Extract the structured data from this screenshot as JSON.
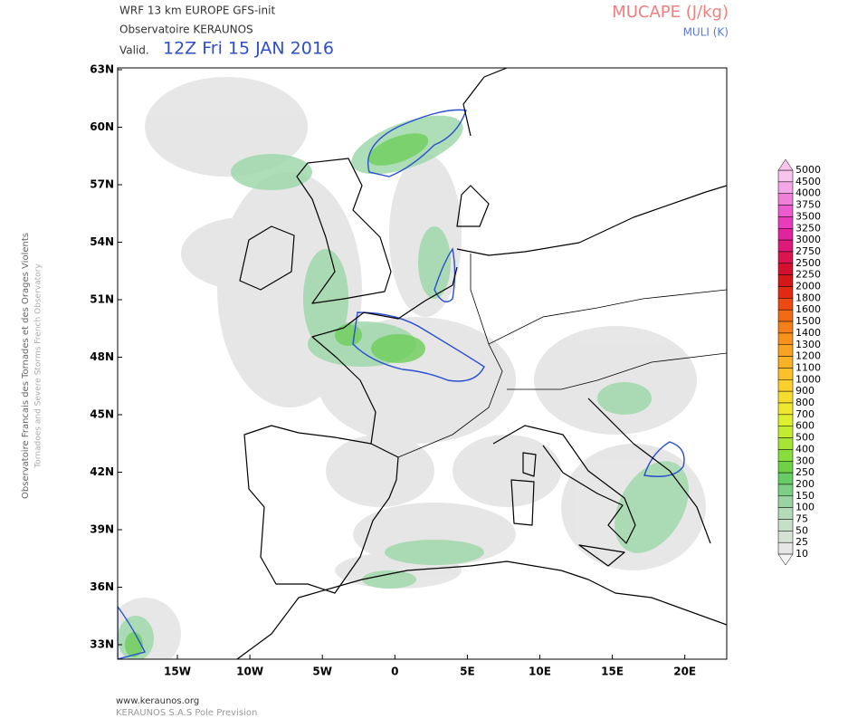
{
  "header": {
    "model": "WRF 13 km EUROPE   GFS-init",
    "org": "Observatoire KERAUNOS",
    "valid_prefix": "Valid.",
    "valid_time": "12Z Fri 15 JAN 2016",
    "field": "MUCAPE (J/kg)",
    "contour_field": "MULI (K)"
  },
  "side_text": [
    "Observatoire Francais des Tornades et des Orages Violents",
    "Tornadoes and Severe Storms French Observatory"
  ],
  "footer": [
    "www.keraunos.org",
    "KERAUNOS S.A.S Pole Prevision"
  ],
  "lat_labels": [
    "63N",
    "60N",
    "57N",
    "54N",
    "51N",
    "48N",
    "45N",
    "42N",
    "39N",
    "36N",
    "33N"
  ],
  "lon_labels": [
    "15W",
    "10W",
    "5W",
    "0",
    "5E",
    "10E",
    "15E",
    "20E"
  ],
  "colorbar": {
    "levels": [
      5000,
      4500,
      4000,
      3750,
      3500,
      3250,
      3000,
      2750,
      2500,
      2250,
      2000,
      1800,
      1600,
      1500,
      1400,
      1300,
      1200,
      1100,
      1000,
      900,
      800,
      700,
      600,
      500,
      400,
      300,
      250,
      200,
      150,
      100,
      75,
      50,
      25,
      10
    ],
    "colors": [
      "#f7c4ee",
      "#f5a6e6",
      "#f07fd9",
      "#ec5ccd",
      "#e83cbd",
      "#e2239e",
      "#dd1a7a",
      "#d9144f",
      "#d4102e",
      "#d41818",
      "#e12a14",
      "#ec4a14",
      "#f26a16",
      "#f5801a",
      "#f7931d",
      "#f8a321",
      "#f9b225",
      "#fac12a",
      "#fbcf2e",
      "#f7dc30",
      "#f0e830",
      "#ddef2e",
      "#c4ec2e",
      "#a6e534",
      "#88dc3c",
      "#6fd246",
      "#66cc66",
      "#7dcf86",
      "#9ad4a2",
      "#b3dbb8",
      "#c6e0c8",
      "#d6e2d6",
      "#e6e6e6",
      "#f4f4f4"
    ]
  }
}
